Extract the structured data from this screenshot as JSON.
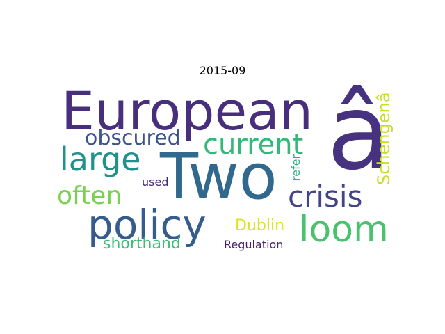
{
  "title": "2015-09",
  "words": {
    "european": {
      "text": "European",
      "color": "#472f7d"
    },
    "a_hat": {
      "text": "â",
      "color": "#46327e"
    },
    "two": {
      "text": "Two",
      "color": "#31688e"
    },
    "obscured": {
      "text": "obscured",
      "color": "#3b528b"
    },
    "current": {
      "text": "current",
      "color": "#35b779"
    },
    "large": {
      "text": "large",
      "color": "#21918c"
    },
    "schengen": {
      "text": "Schengenâ",
      "color": "#c8e020"
    },
    "refer": {
      "text": "refer",
      "color": "#29af7f"
    },
    "used": {
      "text": "used",
      "color": "#482878"
    },
    "often": {
      "text": "often",
      "color": "#7ad151"
    },
    "crisis": {
      "text": "crisis",
      "color": "#414487"
    },
    "policy": {
      "text": "policy",
      "color": "#365c8d"
    },
    "loom": {
      "text": "loom",
      "color": "#4ac16d"
    },
    "dublin": {
      "text": "Dublin",
      "color": "#dde318"
    },
    "shorthand": {
      "text": "shorthand",
      "color": "#3dbc74"
    },
    "regulation": {
      "text": "Regulation",
      "color": "#481f70"
    }
  }
}
